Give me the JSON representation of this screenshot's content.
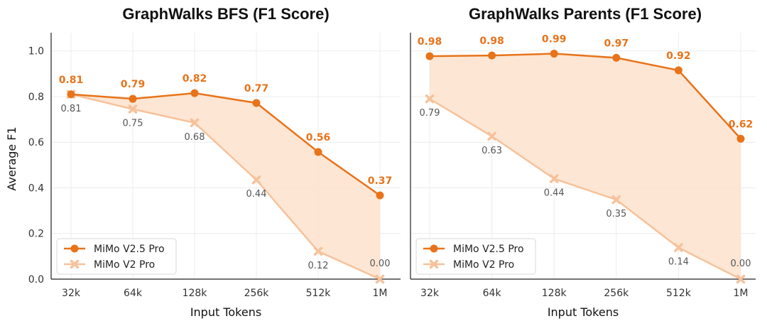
{
  "colors": {
    "new_series": "#E8731A",
    "old_series": "#F6C29B",
    "fill": "#FDE3CF",
    "grid": "#ECECEC",
    "axis": "#222222"
  },
  "chart_data": [
    {
      "type": "line",
      "title": "GraphWalks BFS (F1 Score)",
      "xlabel": "Input Tokens",
      "ylabel": "Average F1",
      "categories": [
        "32k",
        "64k",
        "128k",
        "256k",
        "512k",
        "1M"
      ],
      "ylim": [
        0,
        1.08
      ],
      "yticks": [
        "0.0",
        "0.2",
        "0.4",
        "0.6",
        "0.8",
        "1.0"
      ],
      "grid": true,
      "legend_position": "bottom-left",
      "series": [
        {
          "name": "MiMo V2.5 Pro",
          "values": [
            0.81,
            0.79,
            0.815,
            0.772,
            0.557,
            0.367
          ],
          "labels": [
            "0.81",
            "0.79",
            "0.82",
            "0.77",
            "0.56",
            "0.37"
          ]
        },
        {
          "name": "MiMo V2 Pro",
          "values": [
            0.81,
            0.745,
            0.685,
            0.435,
            0.122,
            0.0
          ],
          "labels": [
            "0.81",
            "0.75",
            "0.68",
            "0.44",
            "0.12",
            "0.00"
          ]
        }
      ]
    },
    {
      "type": "line",
      "title": "GraphWalks Parents (F1 Score)",
      "xlabel": "Input Tokens",
      "ylabel": "",
      "categories": [
        "32k",
        "64k",
        "128k",
        "256k",
        "512k",
        "1M"
      ],
      "ylim": [
        0,
        1.08
      ],
      "yticks": [],
      "grid": true,
      "legend_position": "bottom-left",
      "series": [
        {
          "name": "MiMo V2.5 Pro",
          "values": [
            0.977,
            0.98,
            0.988,
            0.97,
            0.915,
            0.615
          ],
          "labels": [
            "0.98",
            "0.98",
            "0.99",
            "0.97",
            "0.92",
            "0.62"
          ]
        },
        {
          "name": "MiMo V2 Pro",
          "values": [
            0.79,
            0.626,
            0.44,
            0.348,
            0.138,
            0.0
          ],
          "labels": [
            "0.79",
            "0.63",
            "0.44",
            "0.35",
            "0.14",
            "0.00"
          ]
        }
      ]
    }
  ]
}
